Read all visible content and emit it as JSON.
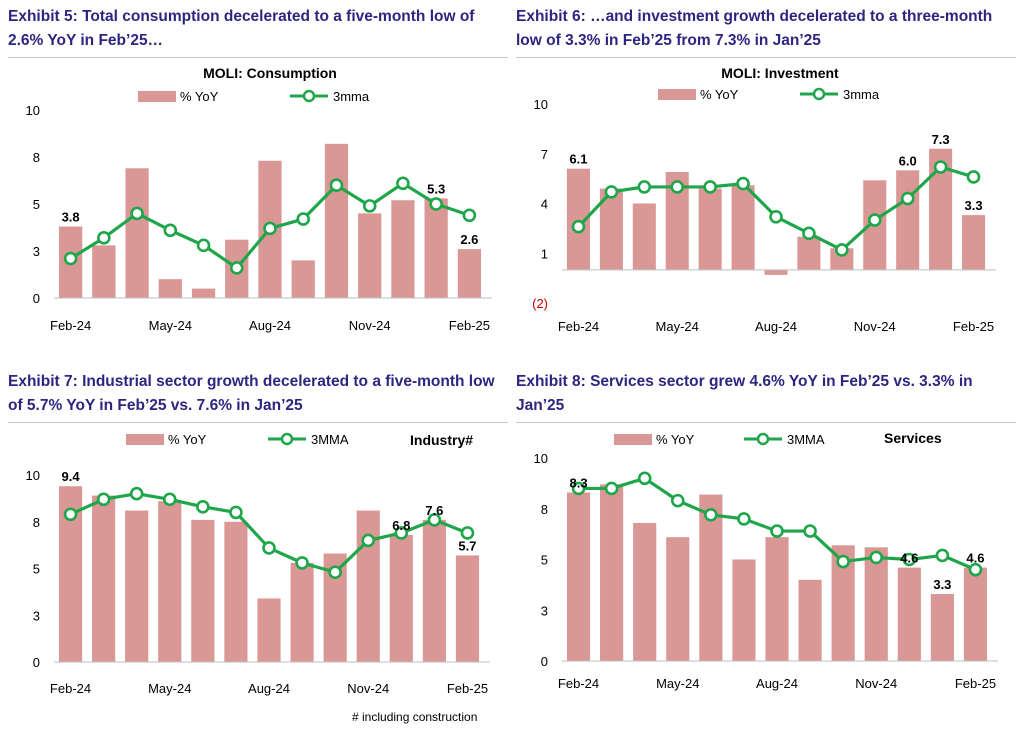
{
  "colors": {
    "bar": "#d99796",
    "line": "#1fa64a",
    "title": "#2e2580",
    "negative_tick": "#c00000"
  },
  "footnote": "# including construction",
  "chart_data": [
    {
      "exhibit_title": "Exhibit 5: Total consumption decelerated to a five-month low of 2.6% YoY in Feb’25…",
      "type": "bar",
      "title": "MOLI: Consumption",
      "legend": {
        "bar": "% YoY",
        "line": "3mma",
        "placement": "top"
      },
      "ylim": [
        0,
        10
      ],
      "yticks": [
        "0",
        "3",
        "5",
        "8",
        "10"
      ],
      "ytick_values": [
        0,
        2.5,
        5,
        7.5,
        10
      ],
      "categories": [
        "Feb-24",
        "Mar-24",
        "Apr-24",
        "May-24",
        "Jun-24",
        "Jul-24",
        "Aug-24",
        "Sep-24",
        "Oct-24",
        "Nov-24",
        "Dec-24",
        "Jan-25",
        "Feb-25"
      ],
      "xticks": [
        "Feb-24",
        "May-24",
        "Aug-24",
        "Nov-24",
        "Feb-25"
      ],
      "xtick_index": [
        0,
        3,
        6,
        9,
        12
      ],
      "series": [
        {
          "name": "% YoY",
          "type": "bar",
          "values": [
            3.8,
            2.8,
            6.9,
            1.0,
            0.5,
            3.1,
            7.3,
            2.0,
            8.2,
            4.5,
            5.2,
            5.3,
            2.6
          ]
        },
        {
          "name": "3mma",
          "type": "line",
          "values": [
            2.1,
            3.2,
            4.5,
            3.6,
            2.8,
            1.6,
            3.7,
            4.2,
            6.0,
            4.9,
            6.1,
            5.0,
            4.4
          ]
        }
      ],
      "annotations": [
        {
          "index": 0,
          "text": "3.8"
        },
        {
          "index": 11,
          "text": "5.3"
        },
        {
          "index": 12,
          "text": "2.6"
        }
      ]
    },
    {
      "exhibit_title": "Exhibit 6: …and investment growth decelerated to a three-month low of 3.3% in Feb’25 from 7.3% in Jan’25",
      "type": "bar",
      "title": "MOLI: Investment",
      "legend": {
        "bar": "% YoY",
        "line": "3mma",
        "placement": "top"
      },
      "ylim": [
        -2,
        10
      ],
      "yticks": [
        "(2)",
        "1",
        "4",
        "7",
        "10"
      ],
      "ytick_values": [
        -2,
        1,
        4,
        7,
        10
      ],
      "categories": [
        "Feb-24",
        "Mar-24",
        "Apr-24",
        "May-24",
        "Jun-24",
        "Jul-24",
        "Aug-24",
        "Sep-24",
        "Oct-24",
        "Nov-24",
        "Dec-24",
        "Jan-25",
        "Feb-25"
      ],
      "xticks": [
        "Feb-24",
        "May-24",
        "Aug-24",
        "Nov-24",
        "Feb-25"
      ],
      "xtick_index": [
        0,
        3,
        6,
        9,
        12
      ],
      "series": [
        {
          "name": "% YoY",
          "type": "bar",
          "values": [
            6.1,
            4.9,
            4.0,
            5.9,
            4.9,
            5.1,
            -0.3,
            2.0,
            1.3,
            5.4,
            6.0,
            7.3,
            3.3
          ]
        },
        {
          "name": "3mma",
          "type": "line",
          "values": [
            2.6,
            4.7,
            5.0,
            5.0,
            5.0,
            5.2,
            3.2,
            2.2,
            1.2,
            3.0,
            4.3,
            6.2,
            5.6
          ]
        }
      ],
      "annotations": [
        {
          "index": 0,
          "text": "6.1"
        },
        {
          "index": 10,
          "text": "6.0"
        },
        {
          "index": 11,
          "text": "7.3"
        },
        {
          "index": 12,
          "text": "3.3"
        }
      ]
    },
    {
      "exhibit_title": "Exhibit 7: Industrial sector growth decelerated to a five-month low of 5.7% YoY in Feb’25 vs. 7.6% in Jan’25",
      "type": "bar",
      "title": "Industry#",
      "legend": {
        "bar": "% YoY",
        "line": "3MMA",
        "placement": "top"
      },
      "ylim": [
        0,
        10
      ],
      "yticks": [
        "0",
        "3",
        "5",
        "8",
        "10"
      ],
      "ytick_values": [
        0,
        2.5,
        5,
        7.5,
        10
      ],
      "categories": [
        "Feb-24",
        "Mar-24",
        "Apr-24",
        "May-24",
        "Jun-24",
        "Jul-24",
        "Aug-24",
        "Sep-24",
        "Oct-24",
        "Nov-24",
        "Dec-24",
        "Jan-25",
        "Feb-25"
      ],
      "xticks": [
        "Feb-24",
        "May-24",
        "Aug-24",
        "Nov-24",
        "Feb-25"
      ],
      "xtick_index": [
        0,
        3,
        6,
        9,
        12
      ],
      "series": [
        {
          "name": "% YoY",
          "type": "bar",
          "values": [
            9.4,
            8.9,
            8.1,
            8.6,
            7.6,
            7.5,
            3.4,
            5.3,
            5.8,
            8.1,
            6.8,
            7.6,
            5.7
          ]
        },
        {
          "name": "3MMA",
          "type": "line",
          "values": [
            7.9,
            8.7,
            9.0,
            8.7,
            8.3,
            8.0,
            6.1,
            5.3,
            4.8,
            6.5,
            6.9,
            7.6,
            6.9
          ]
        }
      ],
      "annotations": [
        {
          "index": 0,
          "text": "9.4"
        },
        {
          "index": 10,
          "text": "6.8"
        },
        {
          "index": 11,
          "text": "7.6"
        },
        {
          "index": 12,
          "text": "5.7"
        }
      ]
    },
    {
      "exhibit_title": "Exhibit 8: Services sector grew 4.6% YoY in Feb’25 vs. 3.3% in Jan’25",
      "type": "bar",
      "title": "Services",
      "legend": {
        "bar": "% YoY",
        "line": "3MMA",
        "placement": "top"
      },
      "ylim": [
        0,
        10
      ],
      "yticks": [
        "0",
        "3",
        "5",
        "8",
        "10"
      ],
      "ytick_values": [
        0,
        2.5,
        5,
        7.5,
        10
      ],
      "categories": [
        "Feb-24",
        "Mar-24",
        "Apr-24",
        "May-24",
        "Jun-24",
        "Jul-24",
        "Aug-24",
        "Sep-24",
        "Oct-24",
        "Nov-24",
        "Dec-24",
        "Jan-25",
        "Feb-25"
      ],
      "xticks": [
        "Feb-24",
        "May-24",
        "Aug-24",
        "Nov-24",
        "Feb-25"
      ],
      "xtick_index": [
        0,
        3,
        6,
        9,
        12
      ],
      "series": [
        {
          "name": "% YoY",
          "type": "bar",
          "values": [
            8.3,
            8.7,
            6.8,
            6.1,
            8.2,
            5.0,
            6.1,
            4.0,
            5.7,
            5.6,
            4.6,
            3.3,
            4.6
          ]
        },
        {
          "name": "3MMA",
          "type": "line",
          "values": [
            8.5,
            8.5,
            9.0,
            7.9,
            7.2,
            7.0,
            6.4,
            6.4,
            4.9,
            5.1,
            5.0,
            5.2,
            4.5
          ]
        }
      ],
      "annotations": [
        {
          "index": 0,
          "text": "8.3"
        },
        {
          "index": 10,
          "text": "4.6"
        },
        {
          "index": 11,
          "text": "3.3"
        },
        {
          "index": 12,
          "text": "4.6"
        }
      ]
    }
  ]
}
